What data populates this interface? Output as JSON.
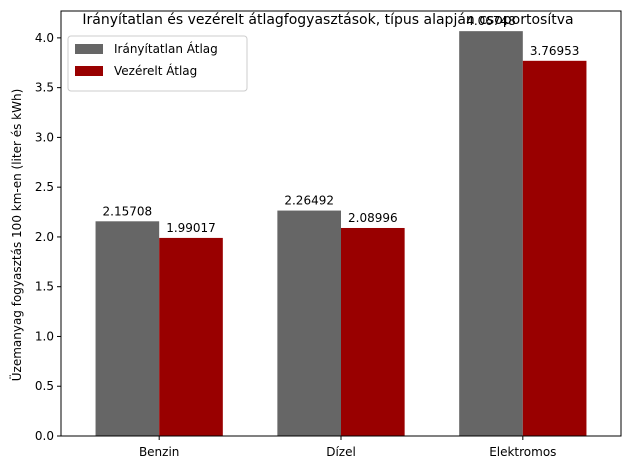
{
  "chart_data": {
    "type": "bar",
    "title": "Irányítatlan és vezérelt átlagfogyasztások, típus alapján csoportosítva",
    "xlabel": "",
    "ylabel": "Üzemanyag fogyasztás 100 km-en (liter és kWh)",
    "categories": [
      "Benzin",
      "Dízel",
      "Elektromos"
    ],
    "series": [
      {
        "name": "Irányítatlan Átlag",
        "values": [
          2.15708,
          2.26492,
          4.06748
        ],
        "labels": [
          "2.15708",
          "2.26492",
          "4.06748"
        ],
        "color": "#666666"
      },
      {
        "name": "Vezérelt Átlag",
        "values": [
          1.99017,
          2.08996,
          3.76953
        ],
        "labels": [
          "1.99017",
          "2.08996",
          "3.76953"
        ],
        "color": "#990000"
      }
    ],
    "ylim": [
      0,
      4.27
    ],
    "yticks": [
      "0.0",
      "0.5",
      "1.0",
      "1.5",
      "2.0",
      "2.5",
      "3.0",
      "3.5",
      "4.0"
    ],
    "grid": false,
    "legend": "upper-left"
  }
}
